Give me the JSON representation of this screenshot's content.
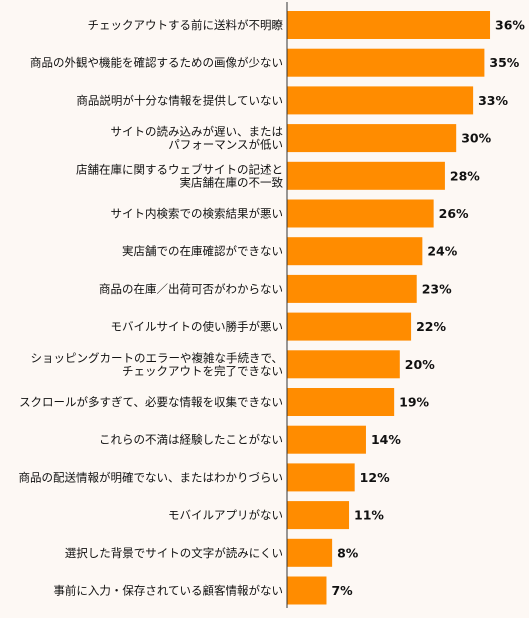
{
  "chart_data": {
    "type": "bar",
    "orientation": "horizontal",
    "categories": [
      "チェックアウトする前に送料が不明瞭",
      "商品の外観や機能を確認するための画像が少ない",
      "商品説明が十分な情報を提供していない",
      "サイトの読み込みが遅い、または\nパフォーマンスが低い",
      "店舗在庫に関するウェブサイトの記述と\n実店舗在庫の不一致",
      "サイト内検索での検索結果が悪い",
      "実店舗での在庫確認ができない",
      "商品の在庫／出荷可否がわからない",
      "モバイルサイトの使い勝手が悪い",
      "ショッピングカートのエラーや複雑な手続きで、\nチェックアウトを完了できない",
      "スクロールが多すぎて、必要な情報を収集できない",
      "これらの不満は経験したことがない",
      "商品の配送情報が明確でない、またはわかりづらい",
      "モバイルアプリがない",
      "選択した背景でサイトの文字が読みにくい",
      "事前に入力・保存されている顧客情報がない"
    ],
    "values": [
      36,
      35,
      33,
      30,
      28,
      26,
      24,
      23,
      22,
      20,
      19,
      14,
      12,
      11,
      8,
      7
    ],
    "value_labels": [
      "36%",
      "35%",
      "33%",
      "30%",
      "28%",
      "26%",
      "24%",
      "23%",
      "22%",
      "20%",
      "19%",
      "14%",
      "12%",
      "11%",
      "8%",
      "7%"
    ],
    "unit": "%",
    "xlim": [
      0,
      40
    ],
    "bar_color": "#ff8c00",
    "axis_color": "#333333",
    "grid": false,
    "legend": "none"
  }
}
